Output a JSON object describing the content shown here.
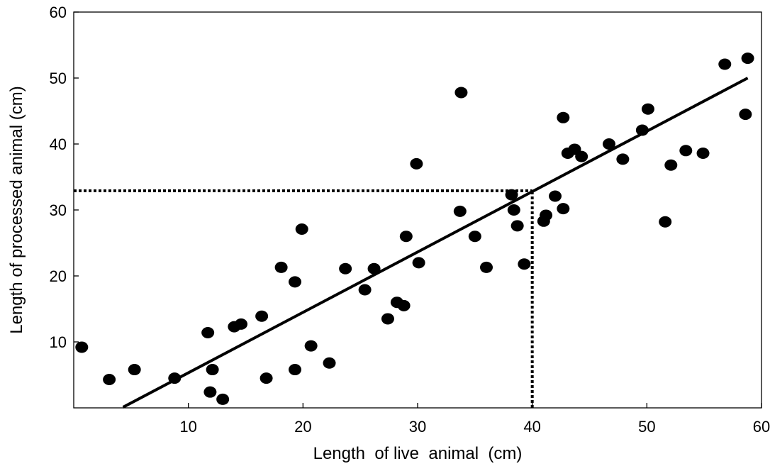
{
  "chart_data": {
    "type": "scatter",
    "title": "",
    "xlabel": "Length  of live  animal  (cm)",
    "ylabel": "Length of processed animal (cm)",
    "xlim": [
      0,
      60
    ],
    "ylim": [
      0,
      60
    ],
    "x_ticks": [
      "10",
      "20",
      "30",
      "40",
      "50",
      "60"
    ],
    "y_ticks": [
      "10",
      "20",
      "30",
      "40",
      "50",
      "60"
    ],
    "grid": false,
    "legend": "none",
    "colors": {
      "points": "#000000",
      "fit_line": "#000000",
      "guide_lines": "#000000",
      "frame": "#000000"
    },
    "points": [
      {
        "x": 0.7,
        "y": 9.2
      },
      {
        "x": 3.1,
        "y": 4.3
      },
      {
        "x": 5.3,
        "y": 5.8
      },
      {
        "x": 8.8,
        "y": 4.5
      },
      {
        "x": 11.7,
        "y": 11.4
      },
      {
        "x": 11.9,
        "y": 2.4
      },
      {
        "x": 12.1,
        "y": 5.8
      },
      {
        "x": 13.0,
        "y": 1.3
      },
      {
        "x": 14.0,
        "y": 12.3
      },
      {
        "x": 14.6,
        "y": 12.7
      },
      {
        "x": 16.4,
        "y": 13.9
      },
      {
        "x": 16.8,
        "y": 4.5
      },
      {
        "x": 18.1,
        "y": 21.3
      },
      {
        "x": 19.3,
        "y": 19.1
      },
      {
        "x": 19.3,
        "y": 5.8
      },
      {
        "x": 19.9,
        "y": 27.1
      },
      {
        "x": 20.7,
        "y": 9.4
      },
      {
        "x": 22.3,
        "y": 6.8
      },
      {
        "x": 23.7,
        "y": 21.1
      },
      {
        "x": 25.4,
        "y": 17.9
      },
      {
        "x": 26.2,
        "y": 21.1
      },
      {
        "x": 27.4,
        "y": 13.5
      },
      {
        "x": 28.2,
        "y": 16.0
      },
      {
        "x": 28.8,
        "y": 15.5
      },
      {
        "x": 29.0,
        "y": 26.0
      },
      {
        "x": 29.9,
        "y": 37.0
      },
      {
        "x": 30.1,
        "y": 22.0
      },
      {
        "x": 33.7,
        "y": 29.8
      },
      {
        "x": 33.8,
        "y": 47.8
      },
      {
        "x": 35.0,
        "y": 26.0
      },
      {
        "x": 36.0,
        "y": 21.3
      },
      {
        "x": 38.2,
        "y": 32.3
      },
      {
        "x": 38.4,
        "y": 30.0
      },
      {
        "x": 38.7,
        "y": 27.6
      },
      {
        "x": 39.3,
        "y": 21.8
      },
      {
        "x": 41.0,
        "y": 28.3
      },
      {
        "x": 41.2,
        "y": 29.2
      },
      {
        "x": 42.0,
        "y": 32.1
      },
      {
        "x": 42.7,
        "y": 30.2
      },
      {
        "x": 42.7,
        "y": 44.0
      },
      {
        "x": 43.1,
        "y": 38.6
      },
      {
        "x": 43.7,
        "y": 39.2
      },
      {
        "x": 44.3,
        "y": 38.1
      },
      {
        "x": 46.7,
        "y": 40.0
      },
      {
        "x": 47.9,
        "y": 37.7
      },
      {
        "x": 49.6,
        "y": 42.1
      },
      {
        "x": 50.1,
        "y": 45.3
      },
      {
        "x": 51.6,
        "y": 28.2
      },
      {
        "x": 52.1,
        "y": 36.8
      },
      {
        "x": 53.4,
        "y": 39.0
      },
      {
        "x": 54.9,
        "y": 38.6
      },
      {
        "x": 56.8,
        "y": 52.1
      },
      {
        "x": 58.6,
        "y": 44.5
      },
      {
        "x": 58.8,
        "y": 53.0
      }
    ],
    "fit_line": {
      "x": [
        4.3,
        58.8
      ],
      "y": [
        0.1,
        50.0
      ]
    },
    "reference_lines": [
      {
        "style": "dotted",
        "x": [
          0,
          40
        ],
        "y": [
          32.9,
          32.9
        ]
      },
      {
        "style": "dotted",
        "x": [
          40,
          40
        ],
        "y": [
          0,
          32.9
        ]
      }
    ]
  }
}
